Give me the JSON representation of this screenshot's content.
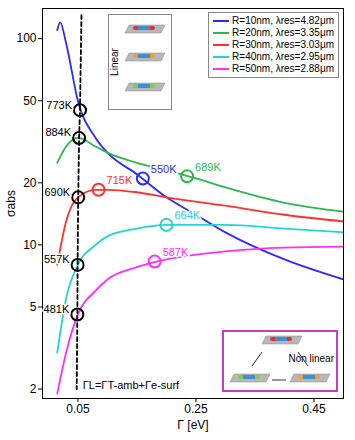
{
  "chart_data": {
    "type": "line",
    "x_label": "Γ [eV]",
    "y_label": "σabs",
    "log": "y",
    "grid": false,
    "legend": "top-right",
    "xlim": [
      -0.01,
      0.5
    ],
    "xticks": [
      0.05,
      0.25,
      0.45
    ],
    "ylim": [
      1.8,
      140
    ],
    "yticks": [
      2,
      5,
      10,
      20,
      50,
      100
    ],
    "series": [
      {
        "name": "R=10nm, λres=4.82μm",
        "color": "#2b2bff",
        "x": [
          0.015,
          0.02,
          0.03,
          0.05,
          0.08,
          0.1,
          0.15,
          0.2,
          0.25,
          0.3,
          0.4,
          0.5
        ],
        "values": [
          110,
          120,
          95,
          50,
          33,
          28,
          22,
          17,
          14,
          11.5,
          8.5,
          6.8
        ],
        "points": [
          {
            "x": 0.16,
            "y": 21,
            "label": "550K"
          }
        ]
      },
      {
        "name": "R=20nm, λres=3.35μm",
        "color": "#2db84d",
        "x": [
          0.015,
          0.03,
          0.05,
          0.08,
          0.1,
          0.15,
          0.2,
          0.25,
          0.3,
          0.4,
          0.5
        ],
        "values": [
          25,
          30,
          33,
          30,
          28,
          25,
          23,
          21,
          19,
          16,
          14.5
        ],
        "points": [
          {
            "x": 0.235,
            "y": 21.5,
            "label": "689K"
          }
        ]
      },
      {
        "name": "R=30nm, λres=3.03μm",
        "color": "#ff3030",
        "x": [
          0.015,
          0.03,
          0.05,
          0.08,
          0.1,
          0.15,
          0.2,
          0.3,
          0.4,
          0.5
        ],
        "values": [
          8,
          13,
          17,
          18.5,
          18.5,
          18,
          17,
          15.5,
          14,
          13
        ],
        "points": [
          {
            "x": 0.085,
            "y": 18.5,
            "label": "715K"
          }
        ]
      },
      {
        "name": "R=40nm, λres=2.95μm",
        "color": "#22d4d4",
        "x": [
          0.015,
          0.03,
          0.05,
          0.08,
          0.1,
          0.15,
          0.2,
          0.3,
          0.4,
          0.5
        ],
        "values": [
          3,
          5.5,
          8,
          10,
          11,
          12,
          12.5,
          12.5,
          12,
          11.5
        ],
        "points": [
          {
            "x": 0.2,
            "y": 12.5,
            "label": "664K"
          }
        ]
      },
      {
        "name": "R=50nm, λres=2.88μm",
        "color": "#ff2eff",
        "x": [
          0.015,
          0.03,
          0.05,
          0.08,
          0.1,
          0.15,
          0.2,
          0.3,
          0.4,
          0.5
        ],
        "values": [
          1.9,
          3,
          4.6,
          6,
          6.8,
          7.8,
          8.5,
          9.3,
          9.7,
          9.8
        ],
        "points": [
          {
            "x": 0.18,
            "y": 8.3,
            "label": "587K"
          }
        ]
      }
    ],
    "reference_line": {
      "label": "ΓL=ΓT-amb+Γe-surf",
      "color": "#000000",
      "line_style": "dashed",
      "x": [
        0.056,
        0.0535,
        0.052,
        0.0505,
        0.0495,
        0.049,
        0.048
      ],
      "values": [
        130,
        45,
        33,
        17,
        8,
        4.6,
        2
      ],
      "points": [
        {
          "x": 0.0535,
          "y": 45,
          "label": "773K"
        },
        {
          "x": 0.052,
          "y": 33,
          "label": "884K"
        },
        {
          "x": 0.0505,
          "y": 17,
          "label": "690K"
        },
        {
          "x": 0.0495,
          "y": 8,
          "label": "557K"
        },
        {
          "x": 0.049,
          "y": 4.6,
          "label": "481K"
        }
      ]
    },
    "insets": [
      {
        "label": "Linear"
      },
      {
        "label": "Non linear"
      }
    ]
  }
}
